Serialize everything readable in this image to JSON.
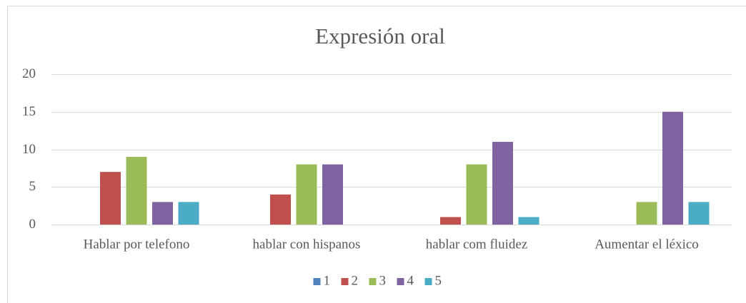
{
  "chart_data": {
    "type": "bar",
    "title": "Expresión oral",
    "categories": [
      "Hablar por telefono",
      "hablar con hispanos",
      "hablar com fluidez",
      "Aumentar el léxico"
    ],
    "series": [
      {
        "name": "1",
        "color": "#4f81bd",
        "values": [
          0,
          0,
          0,
          0
        ]
      },
      {
        "name": "2",
        "color": "#c0504d",
        "values": [
          7,
          4,
          1,
          0
        ]
      },
      {
        "name": "3",
        "color": "#9bbb59",
        "values": [
          9,
          8,
          8,
          3
        ]
      },
      {
        "name": "4",
        "color": "#8064a2",
        "values": [
          3,
          8,
          11,
          15
        ]
      },
      {
        "name": "5",
        "color": "#4bacc6",
        "values": [
          3,
          0,
          1,
          3
        ]
      }
    ],
    "ylim": [
      0,
      20
    ],
    "yticks": [
      0,
      5,
      10,
      15,
      20
    ],
    "grid": true,
    "legend": "bottom"
  }
}
